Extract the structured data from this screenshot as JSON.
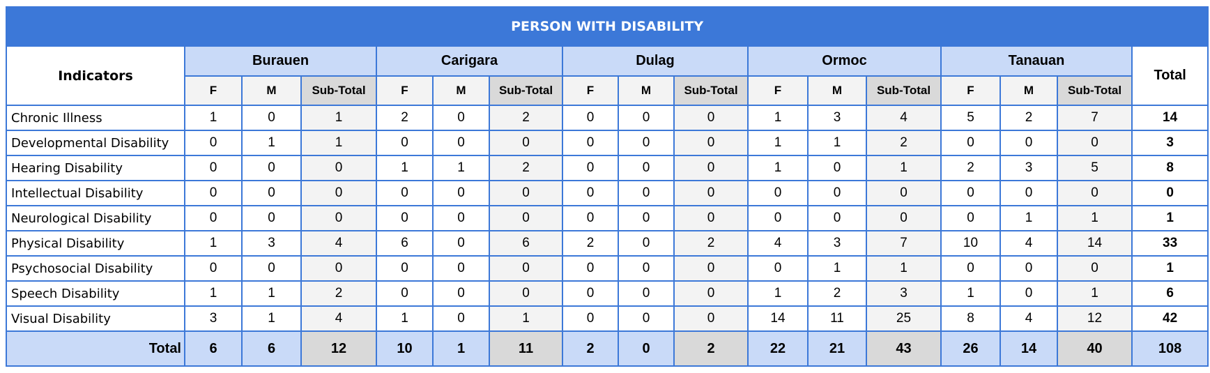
{
  "title": "PERSON WITH DISABILITY",
  "indicators_header": "Indicators",
  "total_header": "Total",
  "sub_headers": {
    "f": "F",
    "m": "M",
    "subtotal": "Sub-Total"
  },
  "cities": [
    "Burauen",
    "Carigara",
    "Dulag",
    "Ormoc",
    "Tanauan"
  ],
  "rows": [
    {
      "label": "Chronic Illness",
      "values": [
        "1",
        "0",
        "1",
        "2",
        "0",
        "2",
        "0",
        "0",
        "0",
        "1",
        "3",
        "4",
        "5",
        "2",
        "7"
      ],
      "total": "14"
    },
    {
      "label": "Developmental Disability",
      "values": [
        "0",
        "1",
        "1",
        "0",
        "0",
        "0",
        "0",
        "0",
        "0",
        "1",
        "1",
        "2",
        "0",
        "0",
        "0"
      ],
      "total": "3"
    },
    {
      "label": "Hearing Disability",
      "values": [
        "0",
        "0",
        "0",
        "1",
        "1",
        "2",
        "0",
        "0",
        "0",
        "1",
        "0",
        "1",
        "2",
        "3",
        "5"
      ],
      "total": "8"
    },
    {
      "label": "Intellectual Disability",
      "values": [
        "0",
        "0",
        "0",
        "0",
        "0",
        "0",
        "0",
        "0",
        "0",
        "0",
        "0",
        "0",
        "0",
        "0",
        "0"
      ],
      "total": "0"
    },
    {
      "label": "Neurological Disability",
      "values": [
        "0",
        "0",
        "0",
        "0",
        "0",
        "0",
        "0",
        "0",
        "0",
        "0",
        "0",
        "0",
        "0",
        "1",
        "1"
      ],
      "total": "1"
    },
    {
      "label": "Physical Disability",
      "values": [
        "1",
        "3",
        "4",
        "6",
        "0",
        "6",
        "2",
        "0",
        "2",
        "4",
        "3",
        "7",
        "10",
        "4",
        "14"
      ],
      "total": "33"
    },
    {
      "label": "Psychosocial Disability",
      "values": [
        "0",
        "0",
        "0",
        "0",
        "0",
        "0",
        "0",
        "0",
        "0",
        "0",
        "1",
        "1",
        "0",
        "0",
        "0"
      ],
      "total": "1"
    },
    {
      "label": "Speech Disability",
      "values": [
        "1",
        "1",
        "2",
        "0",
        "0",
        "0",
        "0",
        "0",
        "0",
        "1",
        "2",
        "3",
        "1",
        "0",
        "1"
      ],
      "total": "6"
    },
    {
      "label": "Visual Disability",
      "values": [
        "3",
        "1",
        "4",
        "1",
        "0",
        "1",
        "0",
        "0",
        "0",
        "14",
        "11",
        "25",
        "8",
        "4",
        "12"
      ],
      "total": "42"
    }
  ],
  "total_row": {
    "label": "Total",
    "values": [
      "6",
      "6",
      "12",
      "10",
      "1",
      "11",
      "2",
      "0",
      "2",
      "22",
      "21",
      "43",
      "26",
      "14",
      "40"
    ],
    "total": "108"
  }
}
